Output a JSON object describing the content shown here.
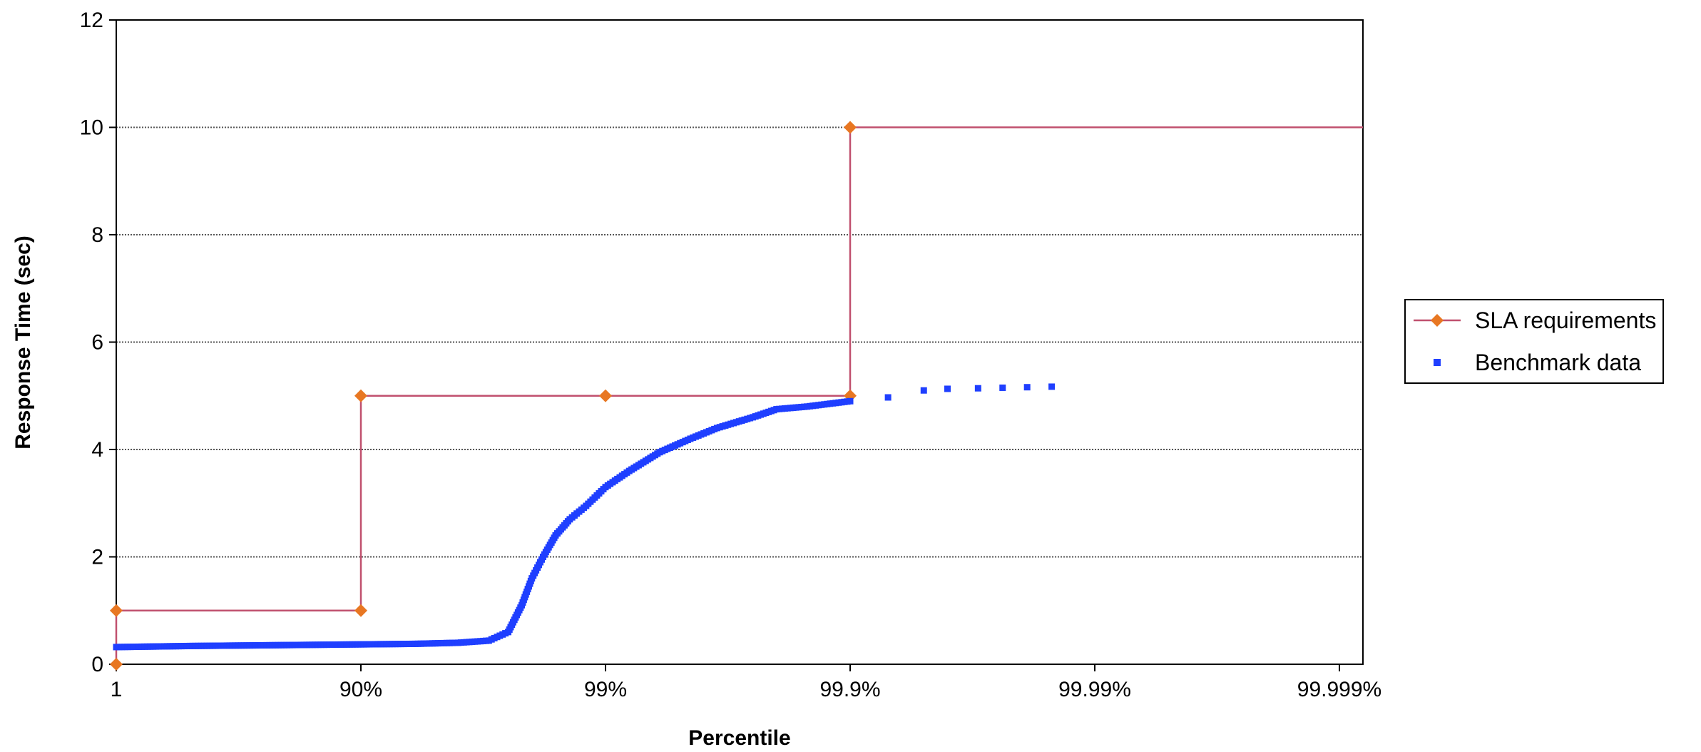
{
  "chart_data": {
    "type": "scatter",
    "title": "",
    "xlabel": "Percentile",
    "ylabel": "Response Time (sec)",
    "x_scale": "log-percentile (each major tick is one more 9)",
    "x_ticks": [
      "1",
      "90%",
      "99%",
      "99.9%",
      "99.99%",
      "99.999%"
    ],
    "ylim": [
      0,
      12
    ],
    "y_ticks": [
      "0",
      "2",
      "4",
      "6",
      "8",
      "10",
      "12"
    ],
    "grid": "horizontal dotted gridlines",
    "legend_position": "right",
    "series": [
      {
        "name": "SLA requirements",
        "style": "line with diamond markers",
        "color": "#E87722",
        "line_color": "#C0506E",
        "points": [
          {
            "x": "1",
            "y": 0
          },
          {
            "x": "1",
            "y": 1
          },
          {
            "x": "90%",
            "y": 1
          },
          {
            "x": "90%",
            "y": 5
          },
          {
            "x": "99%",
            "y": 5
          },
          {
            "x": "99.9%",
            "y": 5
          },
          {
            "x": "99.9%",
            "y": 10
          }
        ],
        "extends_to_axis_end_at": 10
      },
      {
        "name": "Benchmark data",
        "style": "square markers",
        "color": "#1F3FFF",
        "points": [
          {
            "x": "1",
            "y": 0.32
          },
          {
            "x": "50%",
            "y": 0.34
          },
          {
            "x": "90%",
            "y": 0.37
          },
          {
            "x": "94%",
            "y": 0.38
          },
          {
            "x": "96%",
            "y": 0.4
          },
          {
            "x": "97%",
            "y": 0.44
          },
          {
            "x": "97.5%",
            "y": 0.6
          },
          {
            "x": "97.8%",
            "y": 1.1
          },
          {
            "x": "98%",
            "y": 1.6
          },
          {
            "x": "98.2%",
            "y": 2.0
          },
          {
            "x": "98.4%",
            "y": 2.4
          },
          {
            "x": "98.6%",
            "y": 2.7
          },
          {
            "x": "98.8%",
            "y": 2.95
          },
          {
            "x": "99%",
            "y": 3.3
          },
          {
            "x": "99.2%",
            "y": 3.6
          },
          {
            "x": "99.4%",
            "y": 3.95
          },
          {
            "x": "99.55%",
            "y": 4.2
          },
          {
            "x": "99.65%",
            "y": 4.4
          },
          {
            "x": "99.75%",
            "y": 4.6
          },
          {
            "x": "99.8%",
            "y": 4.75
          },
          {
            "x": "99.85%",
            "y": 4.8
          },
          {
            "x": "99.9%",
            "y": 4.9
          },
          {
            "x": "99.93%",
            "y": 4.97
          },
          {
            "x": "99.95%",
            "y": 5.1
          },
          {
            "x": "99.96%",
            "y": 5.13
          },
          {
            "x": "99.97%",
            "y": 5.14
          },
          {
            "x": "99.985%",
            "y": 5.17
          }
        ]
      }
    ]
  }
}
